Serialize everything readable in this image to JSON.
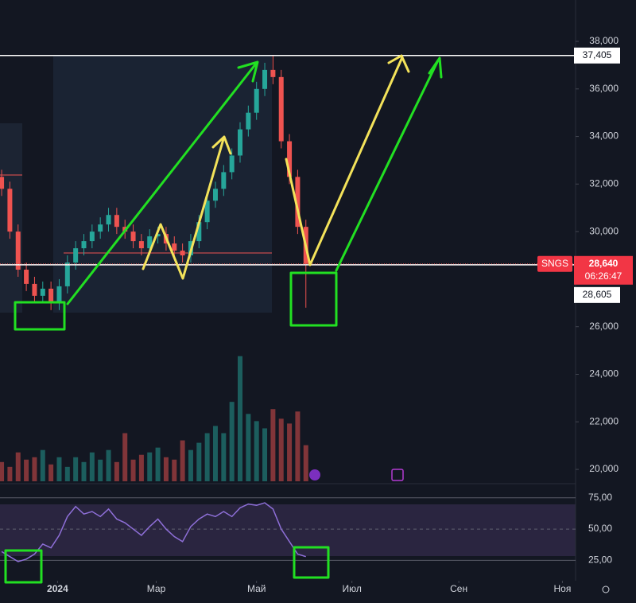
{
  "chart_data": {
    "type": "candlestick",
    "x": [
      1,
      6,
      11,
      16,
      21,
      26,
      31,
      36,
      41,
      46,
      51,
      56,
      61,
      66,
      71,
      76,
      81,
      86,
      91,
      96,
      101,
      106,
      111,
      116,
      121,
      126,
      131,
      136,
      141,
      146,
      151,
      156,
      161,
      166,
      171,
      176,
      181,
      186
    ],
    "open": [
      32300,
      31800,
      30000,
      28400,
      27800,
      27300,
      27600,
      27000,
      27700,
      28700,
      29300,
      29600,
      30000,
      30300,
      30700,
      30200,
      30000,
      29600,
      29300,
      29800,
      29900,
      29500,
      29200,
      29000,
      29600,
      30400,
      31300,
      31800,
      32500,
      33200,
      34300,
      35000,
      36000,
      36800,
      36500,
      33800,
      32300,
      30200
    ],
    "high": [
      32600,
      32100,
      30300,
      28700,
      28100,
      27900,
      27900,
      28000,
      29000,
      29600,
      29900,
      30300,
      30600,
      31000,
      31000,
      30500,
      30300,
      29900,
      30100,
      30200,
      30200,
      29800,
      29500,
      29900,
      30700,
      31600,
      32100,
      32800,
      33500,
      34600,
      35300,
      36300,
      37100,
      37405,
      36800,
      34100,
      32600,
      30500
    ],
    "low": [
      31500,
      29700,
      28100,
      27500,
      27000,
      27000,
      26700,
      26700,
      27400,
      28400,
      29000,
      29300,
      29700,
      30000,
      29900,
      29700,
      29300,
      29000,
      29000,
      29500,
      29200,
      28900,
      28700,
      28700,
      29300,
      30100,
      31000,
      31500,
      32200,
      32900,
      34000,
      34700,
      35700,
      36200,
      33500,
      32000,
      29900,
      26800
    ],
    "close": [
      31800,
      30000,
      28400,
      27800,
      27300,
      27600,
      27000,
      27700,
      28700,
      29300,
      29600,
      30000,
      30300,
      30700,
      30200,
      30000,
      29600,
      29300,
      29800,
      29900,
      29500,
      29200,
      29000,
      29600,
      30400,
      31300,
      31800,
      32500,
      33200,
      34300,
      35000,
      36000,
      36800,
      36500,
      33800,
      32300,
      30200,
      28640
    ],
    "up_color": "#26a69a",
    "down_color": "#ef5350",
    "xlim": [
      0,
      350
    ],
    "xticks": [
      {
        "value": 35,
        "label": "2024"
      },
      {
        "value": 95,
        "label": "Мар"
      },
      {
        "value": 156,
        "label": "Май"
      },
      {
        "value": 214,
        "label": "Июл"
      },
      {
        "value": 279,
        "label": "Сен"
      },
      {
        "value": 342,
        "label": "Ноя"
      }
    ],
    "ylim": [
      19500,
      39740
    ],
    "yticks": [
      {
        "value": 20000,
        "label": "20,000"
      },
      {
        "value": 22000,
        "label": "22,000"
      },
      {
        "value": 24000,
        "label": "24,000"
      },
      {
        "value": 26000,
        "label": "26,000"
      },
      {
        "value": 28000,
        "label": "28,000"
      },
      {
        "value": 30000,
        "label": "30,000"
      },
      {
        "value": 32000,
        "label": "32,000"
      },
      {
        "value": 34000,
        "label": "34,000"
      },
      {
        "value": 36000,
        "label": "36,000"
      },
      {
        "value": 38000,
        "label": "38,000"
      }
    ],
    "price_lines": [
      {
        "value": 37405,
        "label": "37,405"
      },
      {
        "value": 28605,
        "label": "28,605"
      }
    ],
    "last_price": {
      "value": 28640,
      "label": "28,640",
      "symbol": "SNGS",
      "countdown": "06:26:47"
    },
    "volume": {
      "values": [
        0.8,
        0.6,
        1.2,
        0.9,
        1,
        1.3,
        0.7,
        1,
        0.6,
        1,
        0.8,
        1.2,
        0.9,
        1.3,
        0.8,
        2,
        0.9,
        1.1,
        1.2,
        1.4,
        1,
        0.9,
        1.7,
        1.3,
        1.6,
        2,
        2.3,
        2,
        3.3,
        5.2,
        2.8,
        2.5,
        2.2,
        3,
        2.6,
        2.4,
        2.9,
        1.5
      ],
      "ylim": [
        0,
        20
      ]
    },
    "rsi": {
      "values": [
        32,
        28,
        24,
        26,
        30,
        38,
        35,
        45,
        60,
        68,
        62,
        64,
        60,
        66,
        58,
        55,
        50,
        45,
        52,
        58,
        50,
        44,
        40,
        52,
        58,
        62,
        60,
        64,
        60,
        67,
        70,
        69,
        71,
        66,
        50,
        40,
        30,
        28
      ],
      "color": "#8e6fd8",
      "ylim": [
        10,
        85
      ],
      "yticks": [
        {
          "value": 25,
          "label": "25,00"
        },
        {
          "value": 50,
          "label": "50,00"
        },
        {
          "value": 75,
          "label": "75,00"
        }
      ]
    }
  }
}
